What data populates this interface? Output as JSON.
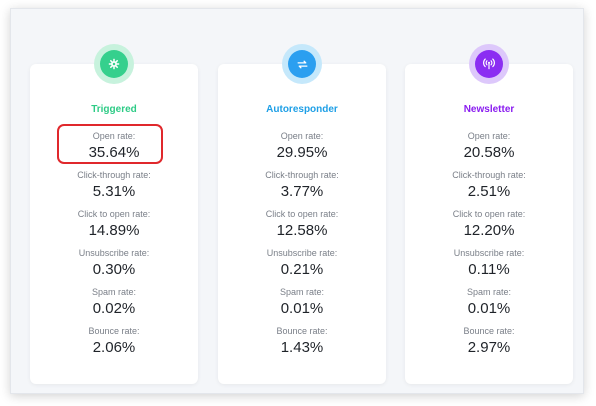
{
  "cards": [
    {
      "title": "Triggered",
      "title_color": "#2ecb86",
      "badge_outer": "#c7f2dd",
      "badge_inner": "#35d08d",
      "icon": "gear-icon",
      "metrics": [
        {
          "label": "Open rate:",
          "value": "35.64%"
        },
        {
          "label": "Click-through rate:",
          "value": "5.31%"
        },
        {
          "label": "Click to open rate:",
          "value": "14.89%"
        },
        {
          "label": "Unsubscribe rate:",
          "value": "0.30%"
        },
        {
          "label": "Spam rate:",
          "value": "0.02%"
        },
        {
          "label": "Bounce rate:",
          "value": "2.06%"
        }
      ]
    },
    {
      "title": "Autoresponder",
      "title_color": "#1e9fe6",
      "badge_outer": "#c5e8fb",
      "badge_inner": "#2b9ff0",
      "icon": "repeat-arrows-icon",
      "metrics": [
        {
          "label": "Open rate:",
          "value": "29.95%"
        },
        {
          "label": "Click-through rate:",
          "value": "3.77%"
        },
        {
          "label": "Click to open rate:",
          "value": "12.58%"
        },
        {
          "label": "Unsubscribe rate:",
          "value": "0.21%"
        },
        {
          "label": "Spam rate:",
          "value": "0.01%"
        },
        {
          "label": "Bounce rate:",
          "value": "1.43%"
        }
      ]
    },
    {
      "title": "Newsletter",
      "title_color": "#8a1cf0",
      "badge_outer": "#ddc8fb",
      "badge_inner": "#8b2df2",
      "icon": "broadcast-icon",
      "metrics": [
        {
          "label": "Open rate:",
          "value": "20.58%"
        },
        {
          "label": "Click-through rate:",
          "value": "2.51%"
        },
        {
          "label": "Click to open rate:",
          "value": "12.20%"
        },
        {
          "label": "Unsubscribe rate:",
          "value": "0.11%"
        },
        {
          "label": "Spam rate:",
          "value": "0.01%"
        },
        {
          "label": "Bounce rate:",
          "value": "2.97%"
        }
      ]
    }
  ],
  "highlight_color": "#e0282c"
}
